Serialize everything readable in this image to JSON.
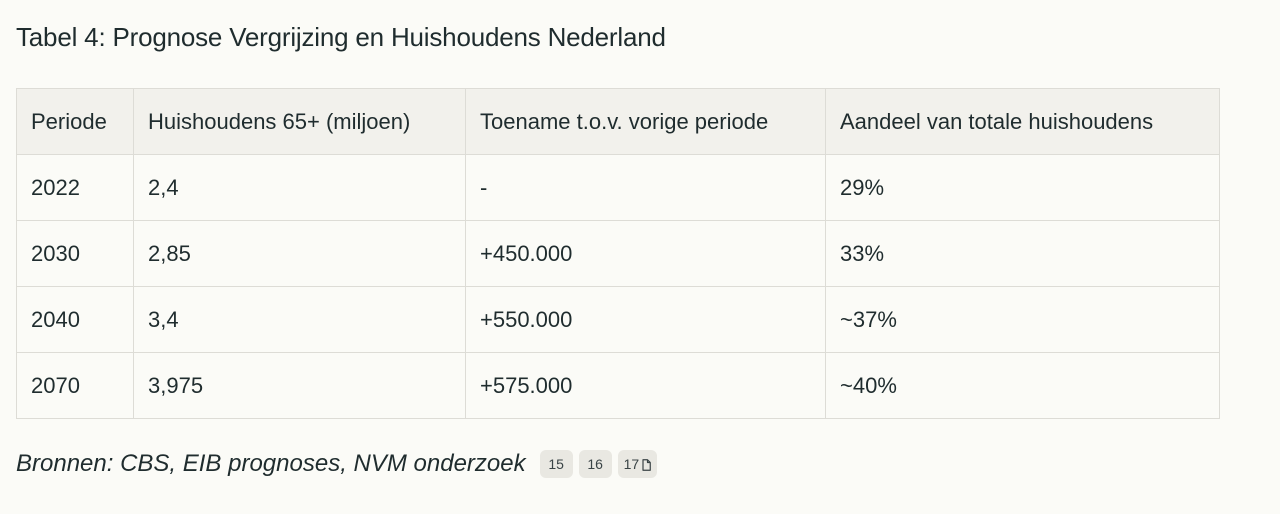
{
  "title": "Tabel 4: Prognose Vergrijzing en Huishoudens Nederland",
  "table": {
    "headers": [
      "Periode",
      "Huishoudens 65+ (miljoen)",
      "Toename t.o.v. vorige periode",
      "Aandeel van totale huishoudens"
    ],
    "rows": [
      [
        "2022",
        "2,4",
        "-",
        "29%"
      ],
      [
        "2030",
        "2,85",
        "+450.000",
        "33%"
      ],
      [
        "2040",
        "3,4",
        "+550.000",
        "~37%"
      ],
      [
        "2070",
        "3,975",
        "+575.000",
        "~40%"
      ]
    ]
  },
  "sources": {
    "text": "Bronnen: CBS, EIB prognoses, NVM onderzoek",
    "citations": [
      "15",
      "16",
      "17"
    ],
    "last_citation_icon": "document-icon"
  }
}
